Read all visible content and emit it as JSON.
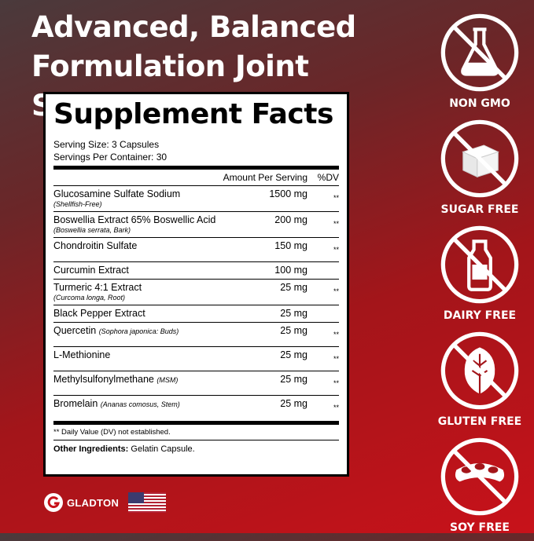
{
  "headline": {
    "line1": "Advanced, Balanced",
    "line2": "Formulation Joint Support"
  },
  "facts": {
    "title": "Supplement Facts",
    "serving_size": "Serving Size: 3 Capsules",
    "servings_per_container": "Servings Per Container: 30",
    "col_amount": "Amount Per Serving",
    "col_dv": "%DV",
    "rows": [
      {
        "name": "Glucosamine Sulfate Sodium",
        "sub": "(Shellfish-Free)",
        "inline_sub": "",
        "amount": "1500 mg",
        "dv": "**"
      },
      {
        "name": "Boswellia Extract 65% Boswellic Acid",
        "sub": "(Boswellia serrata, Bark)",
        "inline_sub": "",
        "amount": "200 mg",
        "dv": "**"
      },
      {
        "name": "Chondroitin Sulfate",
        "sub": "",
        "inline_sub": "",
        "amount": "150 mg",
        "dv": "**"
      },
      {
        "name": "Curcumin Extract",
        "sub": "",
        "inline_sub": "",
        "amount": "100 mg",
        "dv": ""
      },
      {
        "name": "Turmeric 4:1 Extract",
        "sub": "(Curcoma longa, Root)",
        "inline_sub": "",
        "amount": "25 mg",
        "dv": "**"
      },
      {
        "name": "Black Pepper Extract",
        "sub": "",
        "inline_sub": "",
        "amount": "25 mg",
        "dv": ""
      },
      {
        "name": "Quercetin",
        "sub": "",
        "inline_sub": "(Sophora japonica: Buds)",
        "amount": "25 mg",
        "dv": "**"
      },
      {
        "name": "L-Methionine",
        "sub": "",
        "inline_sub": "",
        "amount": "25 mg",
        "dv": "**"
      },
      {
        "name": "Methylsulfonylmethane",
        "sub": "",
        "inline_sub": "(MSM)",
        "amount": "25 mg",
        "dv": "**"
      },
      {
        "name": "Bromelain",
        "sub": "",
        "inline_sub": "(Ananas comosus, Stem)",
        "amount": "25 mg",
        "dv": "**"
      }
    ],
    "footnote": "** Daily Value (DV) not established.",
    "other_label": "Other Ingredients:",
    "other_value": "Gelatin Capsule."
  },
  "badges": [
    {
      "label": "NON GMO",
      "icon": "flask-icon"
    },
    {
      "label": "SUGAR FREE",
      "icon": "sugar-cube-icon"
    },
    {
      "label": "DAIRY FREE",
      "icon": "milk-bottle-icon"
    },
    {
      "label": "GLUTEN FREE",
      "icon": "leaf-icon"
    },
    {
      "label": "SOY FREE",
      "icon": "soybean-icon"
    }
  ],
  "brand": {
    "name": "GLADTON"
  },
  "colors": {
    "accent": "#c8121a",
    "dark": "#4a3a3c"
  }
}
